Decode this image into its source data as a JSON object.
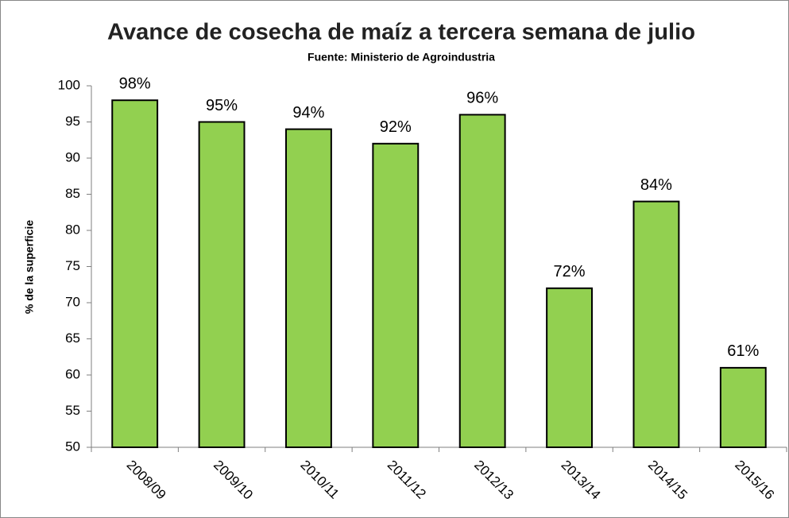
{
  "chart_data": {
    "type": "bar",
    "title": "Avance de cosecha de maíz a tercera semana de julio",
    "subtitle": "Fuente: Ministerio de Agroindustria",
    "y_label": "% de la superficie",
    "categories": [
      "2008/09",
      "2009/10",
      "2010/11",
      "2011/12",
      "2012/13",
      "2013/14",
      "2014/15",
      "2015/16"
    ],
    "values": [
      98,
      95,
      94,
      92,
      96,
      72,
      84,
      61
    ],
    "value_labels": [
      "98%",
      "95%",
      "94%",
      "92%",
      "96%",
      "72%",
      "84%",
      "61%"
    ],
    "color": "#92d050",
    "ylim": [
      50,
      100
    ],
    "yticks": [
      50,
      55,
      60,
      65,
      70,
      75,
      80,
      85,
      90,
      95,
      100
    ],
    "grid": false
  }
}
